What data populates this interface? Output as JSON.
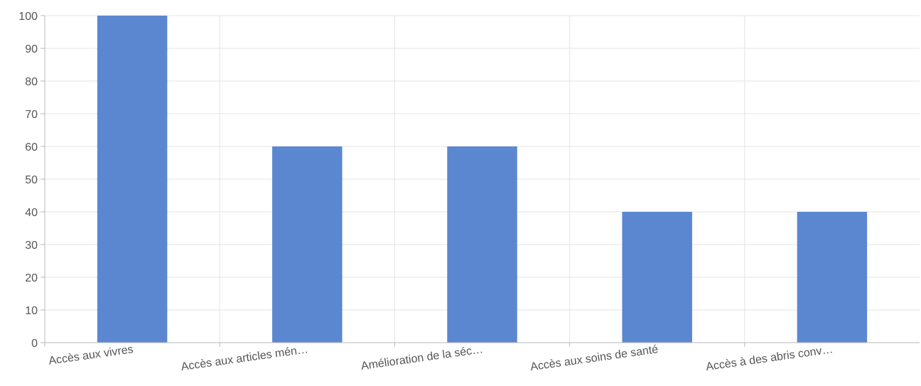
{
  "chart_data": {
    "type": "bar",
    "categories": [
      "Accès aux vivres",
      "Accès aux articles mén…",
      "Amélioration de la séc…",
      "Accès aux soins de santé",
      "Accès à des abris conv…"
    ],
    "values": [
      100,
      60,
      60,
      40,
      40
    ],
    "ylim": [
      0,
      100
    ],
    "yticks": [
      0,
      10,
      20,
      30,
      40,
      50,
      60,
      70,
      80,
      90,
      100
    ],
    "grid": true,
    "legend": "none",
    "colors": {
      "bar": "#5b87d1",
      "grid": "#e3e3e3",
      "axis": "#b8b8b8",
      "text": "#555555"
    }
  }
}
